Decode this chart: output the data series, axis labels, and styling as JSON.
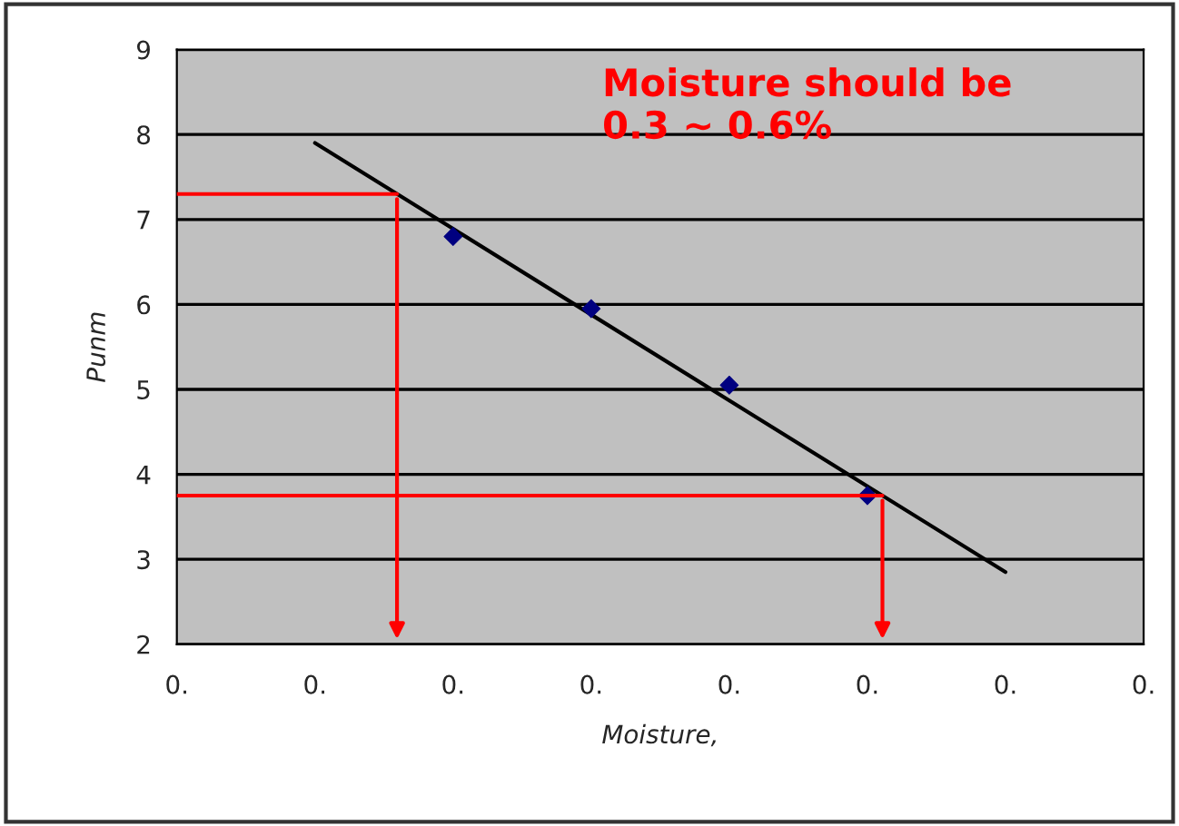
{
  "chart_data": {
    "type": "scatter",
    "xlabel": "Moisture,",
    "ylabel": "Punm",
    "categories": [
      "0.",
      "0.",
      "0.",
      "0.",
      "0.",
      "0.",
      "0.",
      "0."
    ],
    "ylim": [
      2,
      9
    ],
    "yticks": [
      2,
      3,
      4,
      5,
      6,
      7,
      8,
      9
    ],
    "grid": "y",
    "series": [
      {
        "color": "#000080",
        "marker": "diamond",
        "values": [
          null,
          null,
          6.8,
          5.95,
          5.05,
          3.75,
          null,
          null
        ]
      },
      {
        "type": "line",
        "color": "#000000",
        "marker": "none",
        "values": [
          null,
          7.9,
          6.89,
          5.88,
          4.87,
          3.86,
          2.85,
          null
        ]
      }
    ],
    "ref_lines": [
      {
        "axis": "y",
        "value": 7.3,
        "color": "#ff0000"
      },
      {
        "axis": "y",
        "value": 3.75,
        "color": "#ff0000"
      }
    ],
    "annotations": [
      "Moisture should be\n0.3 ~ 0.6%"
    ]
  }
}
